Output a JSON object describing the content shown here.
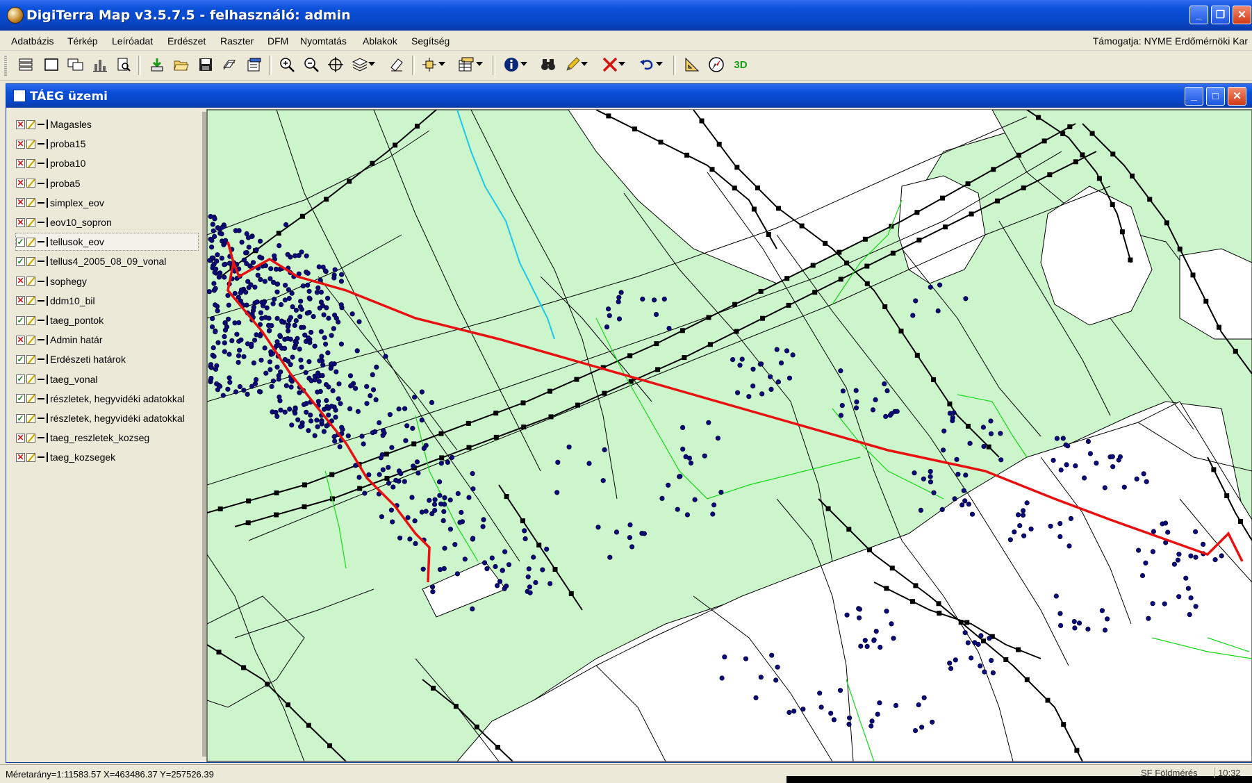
{
  "window": {
    "title": "DigiTerra Map v3.5.7.5 - felhasználó: admin",
    "buttons": [
      "minimize",
      "restore",
      "close"
    ]
  },
  "menu": {
    "items": [
      "Adatbázis",
      "Térkép",
      "Leíróadat",
      "Erdészet",
      "Raszter",
      "DFM",
      "Nyomtatás",
      "Ablakok",
      "Segítség"
    ],
    "support_text": "Támogatja: NYME Erdőmérnöki Kar"
  },
  "toolbar": {
    "buttons": [
      {
        "icon": "layers-icon"
      },
      {
        "icon": "rectangle-icon"
      },
      {
        "icon": "window-icon"
      },
      {
        "icon": "chart-icon"
      },
      {
        "icon": "print-preview-icon"
      },
      {
        "icon": "import-icon"
      },
      {
        "icon": "open-folder-icon"
      },
      {
        "icon": "save-icon"
      },
      {
        "icon": "export-icon"
      },
      {
        "icon": "properties-icon"
      },
      {
        "icon": "zoom-in-icon"
      },
      {
        "icon": "zoom-out-icon"
      },
      {
        "icon": "pan-crosshair-icon"
      },
      {
        "icon": "layer-stack-icon"
      },
      {
        "icon": "eraser-icon"
      },
      {
        "icon": "select-icon"
      },
      {
        "icon": "table-icon"
      },
      {
        "icon": "info-icon"
      },
      {
        "icon": "binoculars-icon"
      },
      {
        "icon": "pencil-icon"
      },
      {
        "icon": "delete-icon"
      },
      {
        "icon": "undo-icon"
      },
      {
        "icon": "measure-icon"
      },
      {
        "icon": "compass-icon"
      },
      {
        "icon": "3d-icon",
        "label": "3D"
      }
    ]
  },
  "child_window": {
    "title": "TÁEG üzemi"
  },
  "layers": [
    {
      "name": "Magasles",
      "visible": false
    },
    {
      "name": "proba15",
      "visible": false
    },
    {
      "name": "proba10",
      "visible": false
    },
    {
      "name": "proba5",
      "visible": false
    },
    {
      "name": "simplex_eov",
      "visible": false
    },
    {
      "name": "eov10_sopron",
      "visible": false
    },
    {
      "name": "tellusok_eov",
      "visible": true,
      "selected": true
    },
    {
      "name": "tellus4_2005_08_09_vonal",
      "visible": true
    },
    {
      "name": "sophegy",
      "visible": false
    },
    {
      "name": "ddm10_bil",
      "visible": false
    },
    {
      "name": "taeg_pontok",
      "visible": true
    },
    {
      "name": "Admin határ",
      "visible": false
    },
    {
      "name": "Erdészeti határok",
      "visible": true
    },
    {
      "name": "taeg_vonal",
      "visible": true
    },
    {
      "name": "részletek, hegyvidéki adatokkal",
      "visible": true
    },
    {
      "name": "részletek, hegyvidéki adatokkal",
      "visible": true
    },
    {
      "name": "taeg_reszletek_kozseg",
      "visible": false
    },
    {
      "name": "taeg_kozsegek",
      "visible": false
    }
  ],
  "colors": {
    "forest": "#ccf5cc",
    "track": "#e81010",
    "points": "#0a0a7a",
    "stream": "#1ac8e8",
    "boundary_green": "#16d816"
  },
  "status": {
    "coords": "Méretarány=1:11583.57  X=463486.37  Y=257526.39",
    "mode": "SF Földmérés",
    "clock": "10:32"
  }
}
